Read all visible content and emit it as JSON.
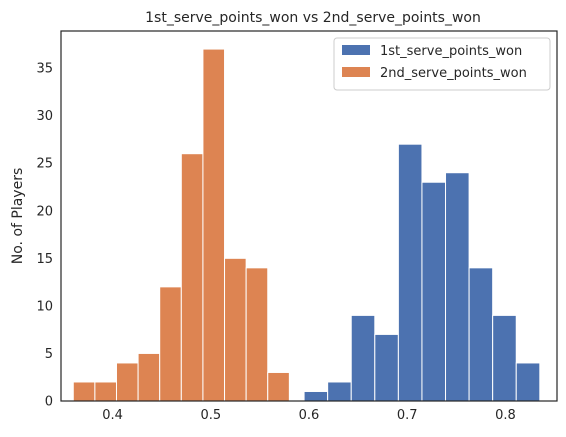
{
  "chart_data": {
    "type": "bar",
    "title": "1st_serve_points_won vs 2nd_serve_points_won",
    "xlabel": "",
    "ylabel": "No. of Players",
    "xlim": [
      0.3475,
      0.8525
    ],
    "ylim": [
      0,
      38.9
    ],
    "xticks": [
      0.4,
      0.5,
      0.6,
      0.7,
      0.8
    ],
    "yticks": [
      0,
      5,
      10,
      15,
      20,
      25,
      30,
      35
    ],
    "grid": false,
    "legend_position": "top-right",
    "series": [
      {
        "name": "1st_serve_points_won",
        "color": "#4c72b0",
        "bins": [
          {
            "x0": 0.595,
            "x1": 0.619,
            "value": 1
          },
          {
            "x0": 0.619,
            "x1": 0.643,
            "value": 2
          },
          {
            "x0": 0.643,
            "x1": 0.667,
            "value": 9
          },
          {
            "x0": 0.667,
            "x1": 0.691,
            "value": 7
          },
          {
            "x0": 0.691,
            "x1": 0.715,
            "value": 27
          },
          {
            "x0": 0.715,
            "x1": 0.739,
            "value": 23
          },
          {
            "x0": 0.739,
            "x1": 0.763,
            "value": 24
          },
          {
            "x0": 0.763,
            "x1": 0.787,
            "value": 14
          },
          {
            "x0": 0.787,
            "x1": 0.811,
            "value": 9
          },
          {
            "x0": 0.811,
            "x1": 0.835,
            "value": 4
          }
        ]
      },
      {
        "name": "2nd_serve_points_won",
        "color": "#dd8452",
        "bins": [
          {
            "x0": 0.36,
            "x1": 0.382,
            "value": 2
          },
          {
            "x0": 0.382,
            "x1": 0.404,
            "value": 2
          },
          {
            "x0": 0.404,
            "x1": 0.426,
            "value": 4
          },
          {
            "x0": 0.426,
            "x1": 0.448,
            "value": 5
          },
          {
            "x0": 0.448,
            "x1": 0.47,
            "value": 12
          },
          {
            "x0": 0.47,
            "x1": 0.492,
            "value": 26
          },
          {
            "x0": 0.492,
            "x1": 0.514,
            "value": 37
          },
          {
            "x0": 0.514,
            "x1": 0.536,
            "value": 15
          },
          {
            "x0": 0.536,
            "x1": 0.558,
            "value": 14
          },
          {
            "x0": 0.558,
            "x1": 0.58,
            "value": 3
          }
        ]
      }
    ]
  }
}
